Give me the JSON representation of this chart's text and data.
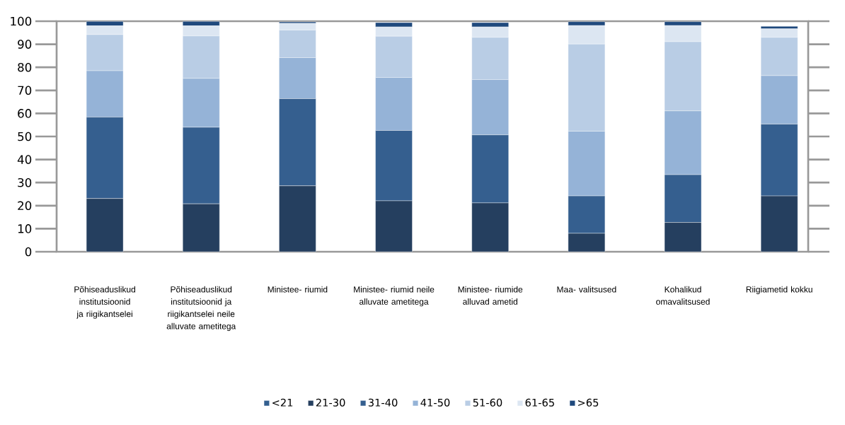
{
  "chart_data": {
    "type": "bar",
    "stacked": true,
    "categories": [
      "Põhiseaduslikud institutsioonid ja riigikantselei",
      "Põhiseaduslikud institutsioonid ja riigikantselei neile alluvate ametitega",
      "Ministee- riumid",
      "Ministee- riumid neile alluvate ametitega",
      "Ministee- riumide alluvad ametid",
      "Maa- valitsused",
      "Kohalikud omavalitsused",
      "Riigiametid kokku"
    ],
    "series": [
      {
        "name": "<21",
        "color": "#335f8f",
        "values": [
          0,
          0,
          0,
          0,
          0,
          0,
          0,
          0
        ]
      },
      {
        "name": "21-30",
        "color": "#253f5f",
        "values": [
          23.1,
          20.8,
          28.6,
          22.1,
          21.2,
          8.0,
          12.7,
          24.2
        ]
      },
      {
        "name": "31-40",
        "color": "#355f8f",
        "values": [
          35.3,
          33.2,
          37.8,
          30.5,
          29.5,
          16.2,
          20.7,
          31.2
        ]
      },
      {
        "name": "41-50",
        "color": "#95b3d7",
        "values": [
          20.1,
          21.2,
          17.8,
          23.0,
          24.0,
          28.1,
          27.7,
          21.0
        ]
      },
      {
        "name": "51-60",
        "color": "#b9cde5",
        "values": [
          15.7,
          18.4,
          12.0,
          17.9,
          18.3,
          37.8,
          30.0,
          16.6
        ]
      },
      {
        "name": "61-65",
        "color": "#dce6f2",
        "values": [
          3.8,
          4.4,
          2.9,
          4.0,
          4.5,
          8.0,
          7.0,
          3.7
        ]
      },
      {
        "name": ">65",
        "color": "#1f497d",
        "values": [
          1.9,
          1.9,
          0.6,
          1.9,
          1.9,
          1.7,
          1.7,
          1.1
        ]
      }
    ],
    "ylim": [
      0,
      100
    ],
    "yticks": [
      0,
      10,
      20,
      30,
      40,
      50,
      60,
      70,
      80,
      90,
      100
    ],
    "legend": "bottom"
  }
}
